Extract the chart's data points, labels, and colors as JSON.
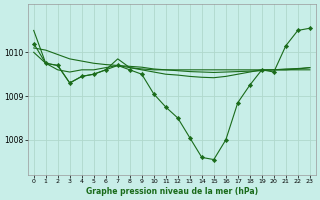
{
  "background_color": "#c8eee8",
  "grid_color": "#b0d8cc",
  "line_color": "#1a6b1a",
  "marker_color": "#1a6b1a",
  "xlabel": "Graphe pression niveau de la mer (hPa)",
  "ylim": [
    1007.2,
    1011.1
  ],
  "xlim": [
    -0.5,
    23.5
  ],
  "yticks": [
    1008,
    1009,
    1010
  ],
  "xticks": [
    0,
    1,
    2,
    3,
    4,
    5,
    6,
    7,
    8,
    9,
    10,
    11,
    12,
    13,
    14,
    15,
    16,
    17,
    18,
    19,
    20,
    21,
    22,
    23
  ],
  "series": [
    {
      "x": [
        0,
        1,
        2,
        3,
        4,
        5,
        6,
        7,
        8,
        9,
        10,
        11,
        12,
        13,
        14,
        15,
        16,
        17,
        18,
        19,
        20,
        21,
        22,
        23
      ],
      "y": [
        1010.1,
        1010.05,
        1009.95,
        1009.85,
        1009.8,
        1009.75,
        1009.72,
        1009.7,
        1009.68,
        1009.66,
        1009.62,
        1009.6,
        1009.58,
        1009.56,
        1009.55,
        1009.54,
        1009.55,
        1009.56,
        1009.57,
        1009.58,
        1009.6,
        1009.62,
        1009.63,
        1009.65
      ],
      "has_markers": false
    },
    {
      "x": [
        0,
        1,
        2,
        3,
        4,
        5,
        6,
        7,
        8,
        9,
        10,
        11,
        12,
        13,
        14,
        15,
        16,
        17,
        18,
        19,
        20,
        21,
        22,
        23
      ],
      "y": [
        1010.5,
        1009.75,
        1009.6,
        1009.55,
        1009.6,
        1009.6,
        1009.65,
        1009.7,
        1009.65,
        1009.62,
        1009.6,
        1009.6,
        1009.6,
        1009.6,
        1009.6,
        1009.6,
        1009.6,
        1009.6,
        1009.6,
        1009.6,
        1009.6,
        1009.6,
        1009.6,
        1009.6
      ],
      "has_markers": false
    },
    {
      "x": [
        0,
        1,
        2,
        3,
        4,
        5,
        6,
        7,
        8,
        9,
        10,
        11,
        12,
        13,
        14,
        15,
        16,
        17,
        18,
        19,
        20,
        21,
        22,
        23
      ],
      "y": [
        1010.0,
        1009.75,
        1009.7,
        1009.3,
        1009.45,
        1009.5,
        1009.6,
        1009.85,
        1009.65,
        1009.6,
        1009.55,
        1009.5,
        1009.48,
        1009.45,
        1009.43,
        1009.42,
        1009.45,
        1009.5,
        1009.55,
        1009.6,
        1009.6,
        1009.6,
        1009.62,
        1009.65
      ],
      "has_markers": false
    },
    {
      "x": [
        0,
        1,
        2,
        3,
        4,
        5,
        6,
        7,
        8,
        9,
        10,
        11,
        12,
        13,
        14,
        15,
        16,
        17,
        18,
        19,
        20,
        21,
        22,
        23
      ],
      "y": [
        1010.2,
        1009.75,
        1009.7,
        1009.3,
        1009.45,
        1009.5,
        1009.6,
        1009.7,
        1009.6,
        1009.5,
        1009.05,
        1008.75,
        1008.5,
        1008.05,
        1007.6,
        1007.55,
        1008.0,
        1008.85,
        1009.25,
        1009.6,
        1009.55,
        1010.15,
        1010.5,
        1010.55
      ],
      "has_markers": true
    }
  ]
}
